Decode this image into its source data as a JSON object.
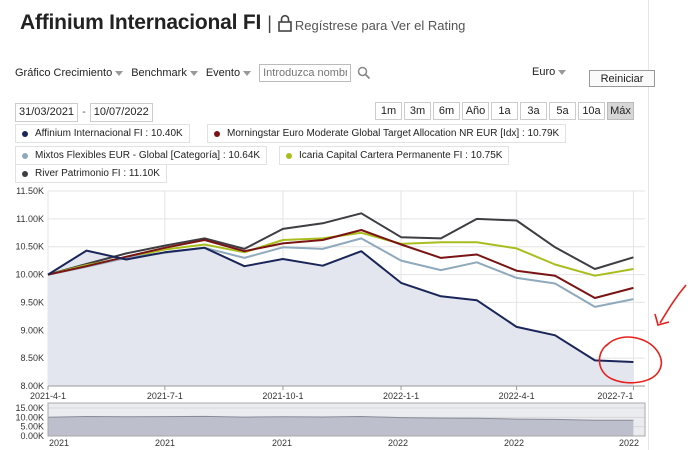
{
  "header": {
    "title": "Affinium Internacional FI",
    "separator": "|",
    "register_link": "Regístrese para Ver el Rating"
  },
  "toolbar": {
    "growth_label": "Gráfico Crecimiento",
    "benchmark_label": "Benchmark",
    "event_label": "Evento",
    "search_placeholder": "Introduzca nombre",
    "currency": "Euro",
    "reset_label": "Reiniciar"
  },
  "dates": {
    "from": "31/03/2021",
    "separator": "-",
    "to": "10/07/2022"
  },
  "periods": [
    "1m",
    "3m",
    "6m",
    "Año",
    "1a",
    "3a",
    "5a",
    "10a",
    "Máx"
  ],
  "active_period": "Máx",
  "colors": {
    "annotation": "#e8201c",
    "grid": "#e4e4e4",
    "area_fill": "#e3e6ef"
  },
  "chart_data": {
    "type": "line",
    "x": [
      "2021-04-01",
      "2021-05-01",
      "2021-06-01",
      "2021-07-01",
      "2021-08-01",
      "2021-09-01",
      "2021-10-01",
      "2021-11-01",
      "2021-12-01",
      "2022-01-01",
      "2022-02-01",
      "2022-03-01",
      "2022-04-01",
      "2022-05-01",
      "2022-06-01",
      "2022-07-01",
      "2022-07-10"
    ],
    "y_ticks": [
      "8.00K",
      "8.50K",
      "9.00K",
      "9.50K",
      "10.00K",
      "10.50K",
      "11.00K",
      "11.50K"
    ],
    "x_ticks": [
      "2021-4-1",
      "2021-7-1",
      "2021-10-1",
      "2022-1-1",
      "2022-4-1",
      "2022-7-1"
    ],
    "ylim": [
      8000,
      11500
    ],
    "series": [
      {
        "name": "Affinium Internacional FI : 10.40K",
        "color": "#1a2559",
        "area": true,
        "values": [
          10000,
          10430,
          10270,
          10400,
          10480,
          10150,
          10280,
          10160,
          10420,
          9850,
          9610,
          9540,
          9060,
          8910,
          8460,
          8430,
          null
        ]
      },
      {
        "name": "Morningstar Euro Moderate Global Target Allocation NR EUR [Idx] : 10.79K",
        "color": "#7a1414",
        "values": [
          10000,
          10150,
          10320,
          10480,
          10620,
          10420,
          10560,
          10620,
          10800,
          10540,
          10300,
          10360,
          10070,
          9980,
          9580,
          9760,
          null
        ]
      },
      {
        "name": "Mixtos Flexibles EUR - Global [Categoría] : 10.64K",
        "color": "#8fa9bd",
        "values": [
          10000,
          10140,
          10300,
          10390,
          10480,
          10300,
          10490,
          10460,
          10650,
          10250,
          10080,
          10220,
          9940,
          9840,
          9420,
          9560,
          null
        ]
      },
      {
        "name": "Icaria Capital Cartera Permanente FI : 10.75K",
        "color": "#a9be1d",
        "values": [
          10000,
          10170,
          10300,
          10450,
          10540,
          10400,
          10620,
          10650,
          10750,
          10550,
          10580,
          10580,
          10470,
          10180,
          9980,
          10100,
          null
        ]
      },
      {
        "name": "River Patrimonio FI : 11.10K",
        "color": "#3e3e42",
        "values": [
          10000,
          10190,
          10380,
          10520,
          10650,
          10460,
          10820,
          10920,
          11100,
          10670,
          10650,
          11000,
          10970,
          10490,
          10100,
          10310,
          null
        ]
      }
    ],
    "navigator": {
      "y_ticks": [
        "15.00K",
        "10.00K",
        "5.00K",
        "0.00K"
      ],
      "x_ticks": [
        "2021",
        "2021",
        "2021",
        "2022",
        "2022",
        "2022"
      ]
    }
  }
}
